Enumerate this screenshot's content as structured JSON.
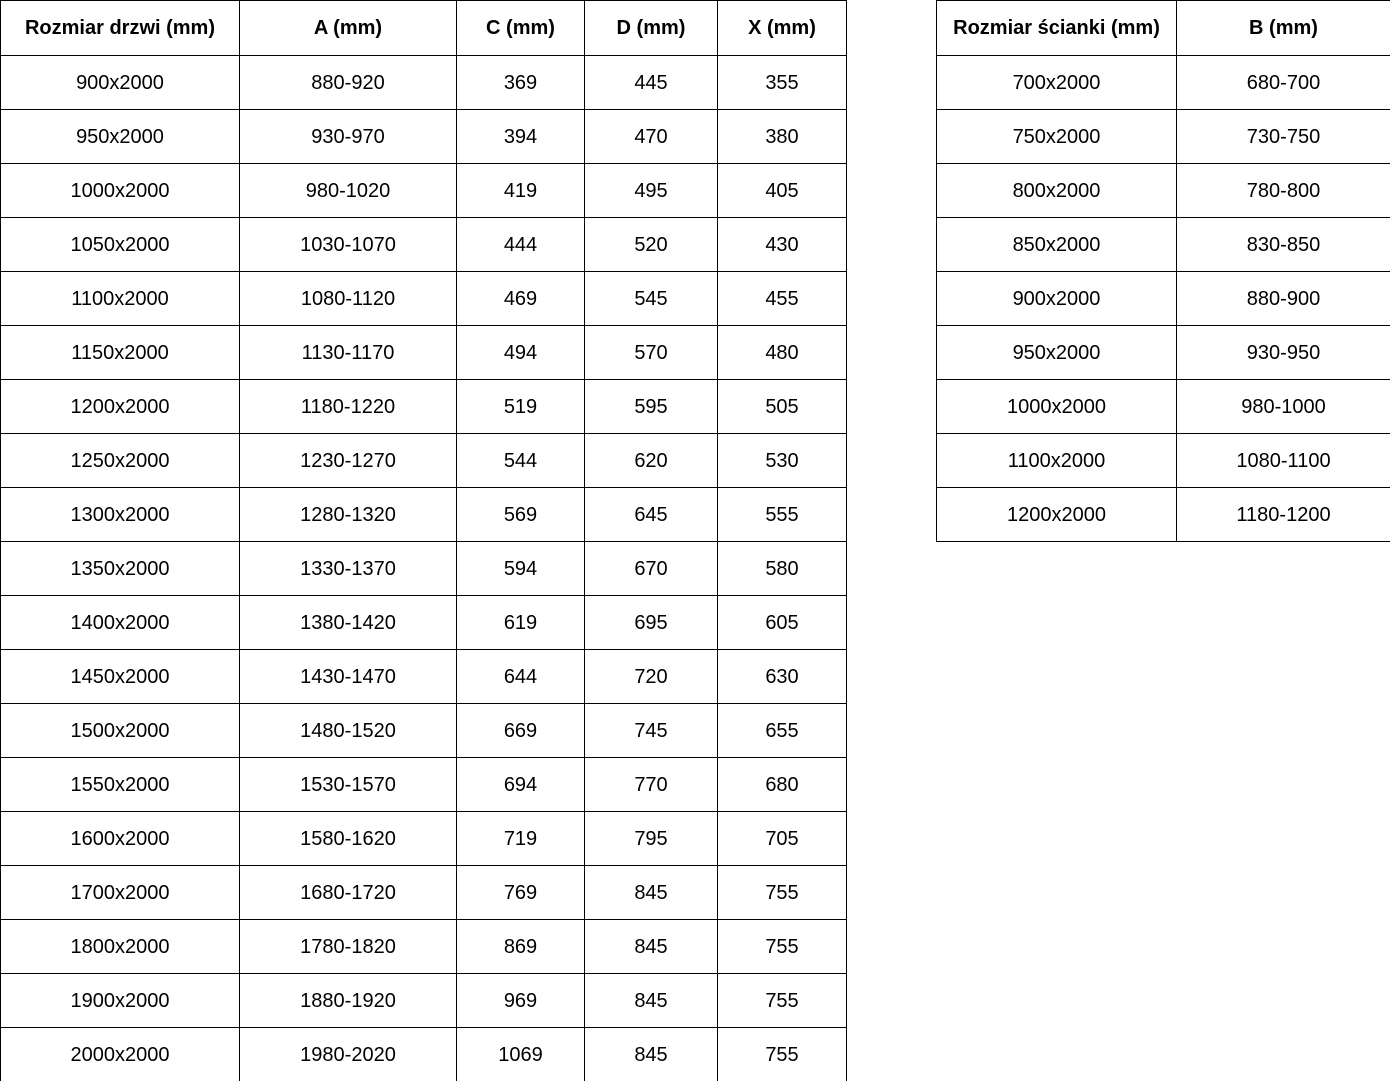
{
  "doors_table": {
    "headers": [
      "Rozmiar drzwi (mm)",
      "A (mm)",
      "C (mm)",
      "D (mm)",
      "X (mm)"
    ],
    "rows": [
      [
        "900x2000",
        "880-920",
        "369",
        "445",
        "355"
      ],
      [
        "950x2000",
        "930-970",
        "394",
        "470",
        "380"
      ],
      [
        "1000x2000",
        "980-1020",
        "419",
        "495",
        "405"
      ],
      [
        "1050x2000",
        "1030-1070",
        "444",
        "520",
        "430"
      ],
      [
        "1100x2000",
        "1080-1120",
        "469",
        "545",
        "455"
      ],
      [
        "1150x2000",
        "1130-1170",
        "494",
        "570",
        "480"
      ],
      [
        "1200x2000",
        "1180-1220",
        "519",
        "595",
        "505"
      ],
      [
        "1250x2000",
        "1230-1270",
        "544",
        "620",
        "530"
      ],
      [
        "1300x2000",
        "1280-1320",
        "569",
        "645",
        "555"
      ],
      [
        "1350x2000",
        "1330-1370",
        "594",
        "670",
        "580"
      ],
      [
        "1400x2000",
        "1380-1420",
        "619",
        "695",
        "605"
      ],
      [
        "1450x2000",
        "1430-1470",
        "644",
        "720",
        "630"
      ],
      [
        "1500x2000",
        "1480-1520",
        "669",
        "745",
        "655"
      ],
      [
        "1550x2000",
        "1530-1570",
        "694",
        "770",
        "680"
      ],
      [
        "1600x2000",
        "1580-1620",
        "719",
        "795",
        "705"
      ],
      [
        "1700x2000",
        "1680-1720",
        "769",
        "845",
        "755"
      ],
      [
        "1800x2000",
        "1780-1820",
        "869",
        "845",
        "755"
      ],
      [
        "1900x2000",
        "1880-1920",
        "969",
        "845",
        "755"
      ],
      [
        "2000x2000",
        "1980-2020",
        "1069",
        "845",
        "755"
      ]
    ]
  },
  "walls_table": {
    "headers": [
      "Rozmiar ścianki (mm)",
      "B (mm)"
    ],
    "rows": [
      [
        "700x2000",
        "680-700"
      ],
      [
        "750x2000",
        "730-750"
      ],
      [
        "800x2000",
        "780-800"
      ],
      [
        "850x2000",
        "830-850"
      ],
      [
        "900x2000",
        "880-900"
      ],
      [
        "950x2000",
        "930-950"
      ],
      [
        "1000x2000",
        "980-1000"
      ],
      [
        "1100x2000",
        "1080-1100"
      ],
      [
        "1200x2000",
        "1180-1200"
      ]
    ]
  },
  "colors": {
    "background": "#ffffff",
    "border": "#000000",
    "text": "#000000"
  }
}
